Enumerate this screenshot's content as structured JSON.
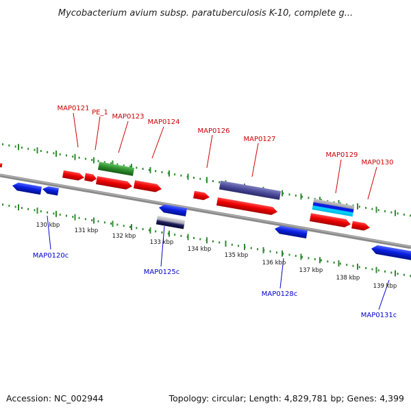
{
  "title": "Mycobacterium avium subsp. paratuberculosis K-10, complete g...",
  "footer": {
    "accession": "Accession: NC_002944",
    "summary": "Topology: circular; Length: 4,829,781 bp; Genes: 4,399"
  },
  "colors": {
    "backbone": "#8a8a8a",
    "tick": "#2e8b2e",
    "forward_gene": "#e00000",
    "reverse_gene": "#0a1fe0",
    "top_label": "#cc0000",
    "bottom_label": "#0000cc",
    "green_feature": "#2a8a2a",
    "purple_feature": "#4a4a9a"
  },
  "kbp_labels": [
    "130 kbp",
    "131 kbp",
    "132 kbp",
    "133 kbp",
    "134 kbp",
    "135 kbp",
    "136 kbp",
    "137 kbp",
    "138 kbp",
    "139 kbp"
  ],
  "top_gene_labels": [
    "MAP0121",
    "PE_1",
    "MAP0123",
    "MAP0124",
    "MAP0126",
    "MAP0127",
    "MAP0129",
    "MAP0130"
  ],
  "bottom_gene_labels": [
    "MAP0120c",
    "MAP0125c",
    "MAP0128c",
    "MAP0131c"
  ]
}
